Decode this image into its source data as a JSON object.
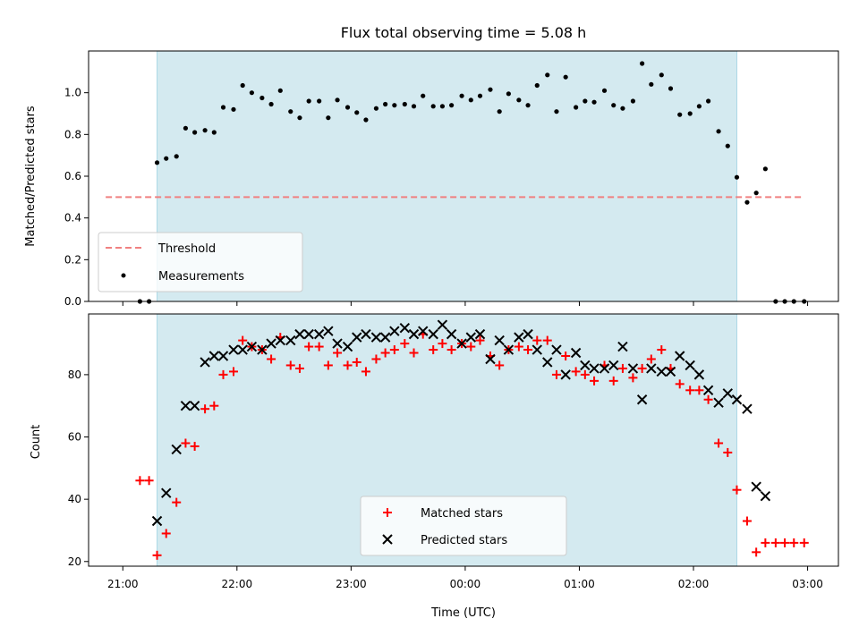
{
  "chart_data": {
    "title": "Flux total observing time = 5.08 h",
    "xlabel": "Time (UTC)",
    "x_ticks": [
      "21:00",
      "22:00",
      "23:00",
      "00:00",
      "01:00",
      "02:00",
      "03:00"
    ],
    "x_tick_hours": [
      0,
      1,
      2,
      3,
      4,
      5,
      6
    ],
    "xlim_hours": [
      -0.3,
      6.27
    ],
    "x_start_label": "21:00",
    "observing_window_hours": [
      0.3,
      5.38
    ],
    "colors": {
      "window": "#d4eaf0",
      "threshold": "#f08080",
      "measurements": "#000000",
      "matched": "#ff0000",
      "predicted": "#000000"
    },
    "panels": [
      {
        "type": "scatter",
        "ylabel": "Matched/Predicted stars",
        "ylim": [
          0,
          1.2
        ],
        "yticks": [
          0.0,
          0.2,
          0.4,
          0.6,
          0.8,
          1.0
        ],
        "ytick_labels": [
          "0.0",
          "0.2",
          "0.4",
          "0.6",
          "0.8",
          "1.0"
        ],
        "legend_position": "lower-left",
        "threshold": {
          "name": "Threshold",
          "value": 0.5,
          "x_range": [
            -0.15,
            5.95
          ]
        },
        "series": [
          {
            "name": "Measurements",
            "marker": "dot",
            "x": [
              0.15,
              0.23,
              0.3,
              0.38,
              0.47,
              0.55,
              0.63,
              0.72,
              0.8,
              0.88,
              0.97,
              1.05,
              1.13,
              1.22,
              1.3,
              1.38,
              1.47,
              1.55,
              1.63,
              1.72,
              1.8,
              1.88,
              1.97,
              2.05,
              2.13,
              2.22,
              2.3,
              2.38,
              2.47,
              2.55,
              2.63,
              2.72,
              2.8,
              2.88,
              2.97,
              3.05,
              3.13,
              3.22,
              3.3,
              3.38,
              3.47,
              3.55,
              3.63,
              3.72,
              3.8,
              3.88,
              3.97,
              4.05,
              4.13,
              4.22,
              4.3,
              4.38,
              4.47,
              4.55,
              4.63,
              4.72,
              4.8,
              4.88,
              4.97,
              5.05,
              5.13,
              5.22,
              5.3,
              5.38,
              5.47,
              5.55,
              5.63,
              5.72,
              5.8,
              5.88,
              5.97
            ],
            "y": [
              0.0,
              0.0,
              0.665,
              0.685,
              0.695,
              0.83,
              0.81,
              0.82,
              0.81,
              0.93,
              0.92,
              1.035,
              1.0,
              0.975,
              0.945,
              1.01,
              0.91,
              0.88,
              0.96,
              0.96,
              0.88,
              0.965,
              0.93,
              0.905,
              0.87,
              0.925,
              0.945,
              0.94,
              0.945,
              0.935,
              0.985,
              0.935,
              0.935,
              0.94,
              0.985,
              0.965,
              0.985,
              1.015,
              0.91,
              0.995,
              0.965,
              0.94,
              1.035,
              1.085,
              0.91,
              1.075,
              0.93,
              0.96,
              0.955,
              1.01,
              0.94,
              0.925,
              0.96,
              1.14,
              1.04,
              1.085,
              1.02,
              0.895,
              0.9,
              0.935,
              0.96,
              0.815,
              0.745,
              0.595,
              0.475,
              0.52,
              0.635,
              0.0,
              0.0,
              0.0,
              0.0
            ]
          }
        ]
      },
      {
        "type": "scatter",
        "ylabel": "Count",
        "ylim": [
          18.5,
          99.5
        ],
        "yticks": [
          20,
          40,
          60,
          80
        ],
        "ytick_labels": [
          "20",
          "40",
          "60",
          "80"
        ],
        "legend_position": "lower-center",
        "series": [
          {
            "name": "Matched stars",
            "marker": "plus",
            "x": [
              0.15,
              0.23,
              0.3,
              0.38,
              0.47,
              0.55,
              0.63,
              0.72,
              0.8,
              0.88,
              0.97,
              1.05,
              1.13,
              1.22,
              1.3,
              1.38,
              1.47,
              1.55,
              1.63,
              1.72,
              1.8,
              1.88,
              1.97,
              2.05,
              2.13,
              2.22,
              2.3,
              2.38,
              2.47,
              2.55,
              2.63,
              2.72,
              2.8,
              2.88,
              2.97,
              3.05,
              3.13,
              3.22,
              3.3,
              3.38,
              3.47,
              3.55,
              3.63,
              3.72,
              3.8,
              3.88,
              3.97,
              4.05,
              4.13,
              4.22,
              4.3,
              4.38,
              4.47,
              4.55,
              4.63,
              4.72,
              4.8,
              4.88,
              4.97,
              5.05,
              5.13,
              5.22,
              5.3,
              5.38,
              5.47,
              5.55,
              5.63,
              5.72,
              5.8,
              5.88,
              5.97
            ],
            "y": [
              46,
              46,
              22,
              29,
              39,
              58,
              57,
              69,
              70,
              80,
              81,
              91,
              89,
              88,
              85,
              92,
              83,
              82,
              89,
              89,
              83,
              87,
              83,
              84,
              81,
              85,
              87,
              88,
              90,
              87,
              93,
              88,
              90,
              88,
              90,
              89,
              91,
              86,
              83,
              88,
              89,
              88,
              91,
              91,
              80,
              86,
              81,
              80,
              78,
              83,
              78,
              82,
              79,
              82,
              85,
              88,
              82,
              77,
              75,
              75,
              72,
              58,
              55,
              43,
              33,
              23,
              26,
              26,
              26,
              26,
              26
            ]
          },
          {
            "name": "Predicted stars",
            "marker": "x",
            "x": [
              0.3,
              0.38,
              0.47,
              0.55,
              0.63,
              0.72,
              0.8,
              0.88,
              0.97,
              1.05,
              1.13,
              1.22,
              1.3,
              1.38,
              1.47,
              1.55,
              1.63,
              1.72,
              1.8,
              1.88,
              1.97,
              2.05,
              2.13,
              2.22,
              2.3,
              2.38,
              2.47,
              2.55,
              2.63,
              2.72,
              2.8,
              2.88,
              2.97,
              3.05,
              3.13,
              3.22,
              3.3,
              3.38,
              3.47,
              3.55,
              3.63,
              3.72,
              3.8,
              3.88,
              3.97,
              4.05,
              4.13,
              4.22,
              4.3,
              4.38,
              4.47,
              4.55,
              4.63,
              4.72,
              4.8,
              4.88,
              4.97,
              5.05,
              5.13,
              5.22,
              5.3,
              5.38,
              5.47,
              5.55,
              5.63
            ],
            "y": [
              33,
              42,
              56,
              70,
              70,
              84,
              86,
              86,
              88,
              88,
              89,
              88,
              90,
              91,
              91,
              93,
              93,
              93,
              94,
              90,
              89,
              92,
              93,
              92,
              92,
              94,
              95,
              93,
              94,
              93,
              96,
              93,
              90,
              92,
              93,
              85,
              91,
              88,
              92,
              93,
              88,
              84,
              88,
              80,
              87,
              83,
              82,
              82,
              83,
              89,
              82,
              72,
              82,
              81,
              81,
              86,
              83,
              80,
              75,
              71,
              74,
              72,
              69,
              44,
              41
            ]
          }
        ]
      }
    ]
  }
}
